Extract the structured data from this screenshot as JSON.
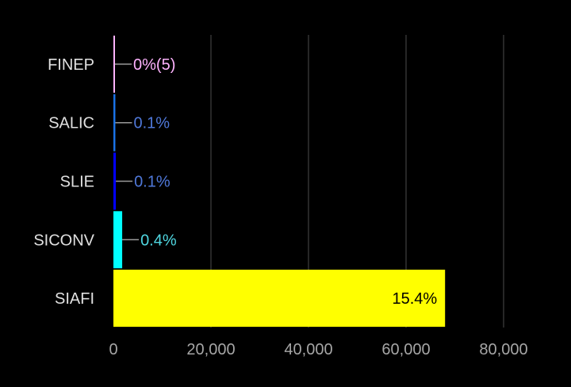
{
  "chart_data": {
    "type": "bar",
    "orientation": "horizontal",
    "categories": [
      "FINEP",
      "SALIC",
      "SLIE",
      "SICONV",
      "SIAFI"
    ],
    "values": [
      5,
      400,
      500,
      1800,
      68000
    ],
    "data_labels": [
      "0%(5)",
      "0.1%",
      "0.1%",
      "0.4%",
      "15.4%"
    ],
    "colors": [
      "#ffb3ff",
      "#1a73e8",
      "#0000ff",
      "#00ffff",
      "#ffff00"
    ],
    "label_colors": [
      "#ffb3ff",
      "#4f78d9",
      "#4f78d9",
      "#4fd6e0",
      "#000000"
    ],
    "xticks": [
      "0",
      "20,000",
      "40,000",
      "60,000",
      "80,000"
    ],
    "xtick_values": [
      0,
      20000,
      40000,
      60000,
      80000
    ],
    "xlim": [
      0,
      80000
    ],
    "grid": true,
    "legend": "none",
    "background": "#000000",
    "title": "",
    "xlabel": "",
    "ylabel": ""
  }
}
